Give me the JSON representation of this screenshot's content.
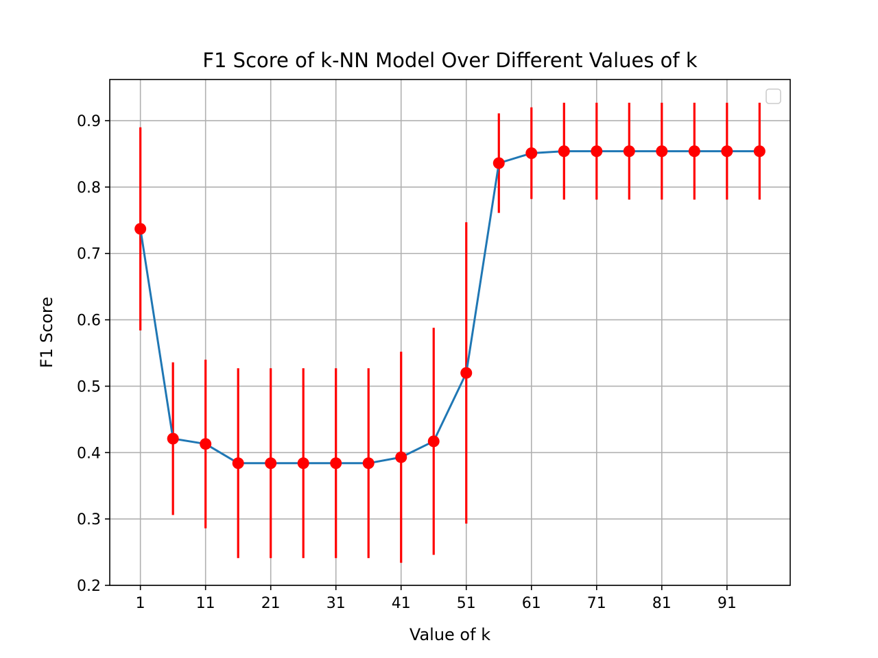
{
  "chart_data": {
    "type": "line",
    "title": "F1 Score of k-NN Model Over Different Values of k",
    "xlabel": "Value of k",
    "ylabel": "F1 Score",
    "xlim": [
      -3.7,
      100.7
    ],
    "ylim": [
      0.2,
      0.962
    ],
    "xticks": [
      1,
      11,
      21,
      31,
      41,
      51,
      61,
      71,
      81,
      91
    ],
    "yticks": [
      0.2,
      0.3,
      0.4,
      0.5,
      0.6,
      0.7,
      0.8,
      0.9
    ],
    "grid": true,
    "legend": "upper-right",
    "line_color": "#1f77b4",
    "marker_color": "#ff0000",
    "error_color": "#ff0000",
    "series": [
      {
        "x": [
          1,
          6,
          11,
          16,
          21,
          26,
          31,
          36,
          41,
          46,
          51,
          56,
          61,
          66,
          71,
          76,
          81,
          86,
          91,
          96
        ],
        "y": [
          0.737,
          0.421,
          0.413,
          0.384,
          0.384,
          0.384,
          0.384,
          0.384,
          0.393,
          0.417,
          0.52,
          0.836,
          0.851,
          0.854,
          0.854,
          0.854,
          0.854,
          0.854,
          0.854,
          0.854
        ],
        "err": [
          0.153,
          0.115,
          0.127,
          0.143,
          0.143,
          0.143,
          0.143,
          0.143,
          0.159,
          0.171,
          0.227,
          0.075,
          0.069,
          0.073,
          0.073,
          0.073,
          0.073,
          0.073,
          0.073,
          0.073
        ]
      }
    ]
  }
}
